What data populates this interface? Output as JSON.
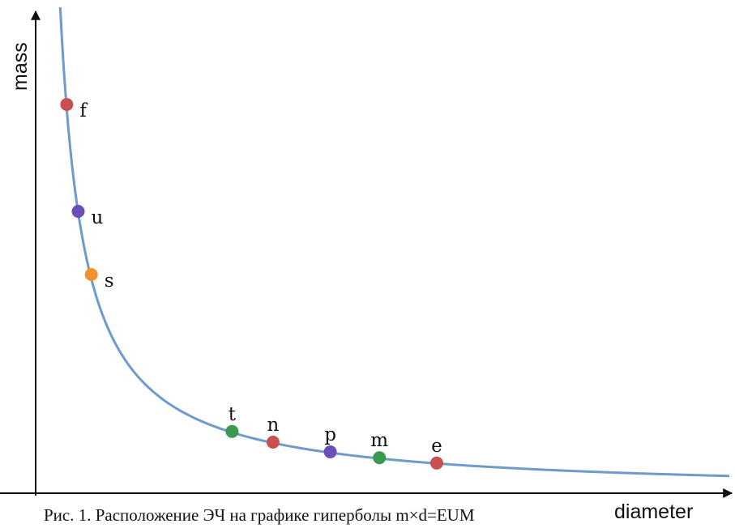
{
  "chart_data": {
    "type": "line",
    "xlabel": "diameter",
    "ylabel": "mass",
    "caption": "Рис. 1. Расположение ЭЧ на графике гиперболы m×d=EUM",
    "grid": false,
    "legend": "none",
    "curve_color": "#6d9bcc",
    "points": [
      {
        "label": "f",
        "x": 0.38,
        "y": 0.8,
        "color": "#c9504f"
      },
      {
        "label": "u",
        "x": 0.52,
        "y": 0.58,
        "color": "#6a4fb8"
      },
      {
        "label": "s",
        "x": 0.68,
        "y": 0.45,
        "color": "#f2922e"
      },
      {
        "label": "t",
        "x": 2.4,
        "y": 0.127,
        "color": "#3b9950"
      },
      {
        "label": "n",
        "x": 2.9,
        "y": 0.105,
        "color": "#c9504f"
      },
      {
        "label": "p",
        "x": 3.6,
        "y": 0.085,
        "color": "#6a4fb8"
      },
      {
        "label": "m",
        "x": 4.2,
        "y": 0.073,
        "color": "#3b9950"
      },
      {
        "label": "e",
        "x": 4.9,
        "y": 0.062,
        "color": "#c9504f"
      }
    ]
  }
}
